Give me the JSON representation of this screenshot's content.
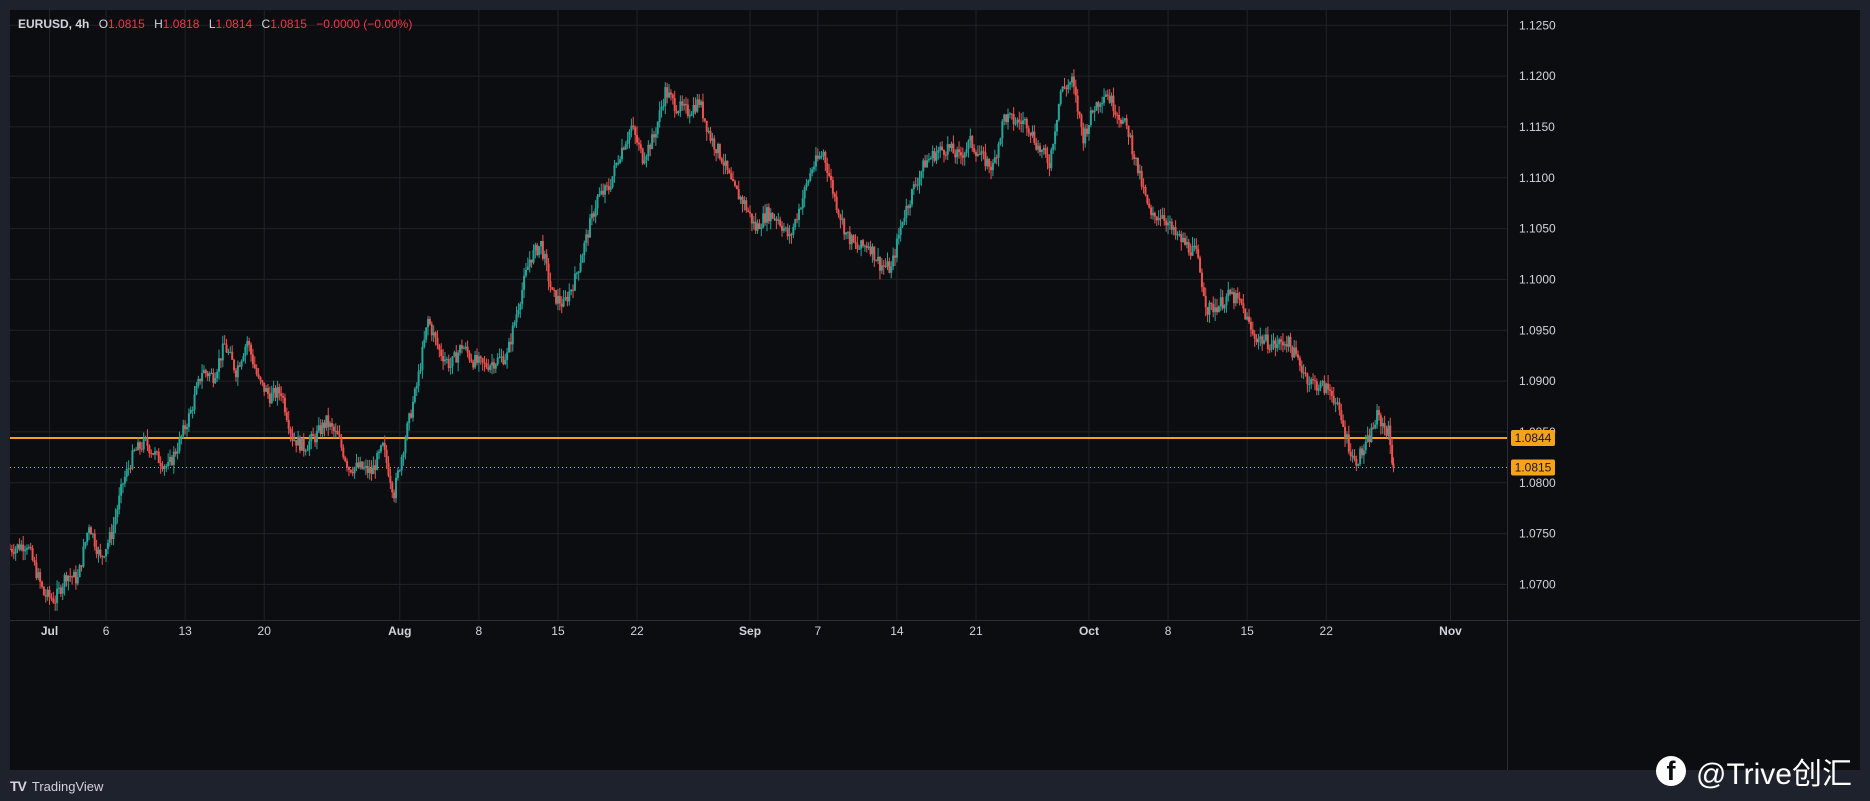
{
  "legend": {
    "symbol": "EURUSD",
    "interval": "4h",
    "o_label": "O",
    "o": "1.0815",
    "h_label": "H",
    "h": "1.0818",
    "l_label": "L",
    "l": "1.0814",
    "c_label": "C",
    "c": "1.0815",
    "change": "−0.0000 (−0.00%)"
  },
  "footer": {
    "brand": "TradingView"
  },
  "watermark": {
    "text": "@Trive创汇",
    "icon": "facebook-icon"
  },
  "colors": {
    "up": "#26a69a",
    "down": "#ef5350",
    "grid": "#1f2227",
    "horizontal_line": "#f7a21b",
    "price_tag": "#f7a21b",
    "background": "#0c0d10"
  },
  "chart_data": {
    "type": "candlestick",
    "symbol": "EURUSD",
    "interval": "4h",
    "ylim": [
      1.0665,
      1.1265
    ],
    "y_ticks": [
      "1.1250",
      "1.1200",
      "1.1150",
      "1.1100",
      "1.1050",
      "1.1000",
      "1.0950",
      "1.0900",
      "1.0850",
      "1.0800",
      "1.0750",
      "1.0700"
    ],
    "x_ticks": [
      {
        "label": "Jul",
        "day": 1,
        "bold": true
      },
      {
        "label": "6",
        "day": 6
      },
      {
        "label": "13",
        "day": 13
      },
      {
        "label": "20",
        "day": 20
      },
      {
        "label": "Aug",
        "day": 32,
        "bold": true
      },
      {
        "label": "8",
        "day": 39
      },
      {
        "label": "15",
        "day": 46
      },
      {
        "label": "22",
        "day": 53
      },
      {
        "label": "Sep",
        "day": 63,
        "bold": true
      },
      {
        "label": "7",
        "day": 69
      },
      {
        "label": "14",
        "day": 76
      },
      {
        "label": "21",
        "day": 83
      },
      {
        "label": "Oct",
        "day": 93,
        "bold": true
      },
      {
        "label": "8",
        "day": 100
      },
      {
        "label": "15",
        "day": 107
      },
      {
        "label": "22",
        "day": 114
      },
      {
        "label": "Nov",
        "day": 125,
        "bold": true
      }
    ],
    "horizontal_line": {
      "price": 1.0844,
      "label": "1.0844"
    },
    "last_price": {
      "price": 1.0815,
      "label": "1.0815"
    },
    "grid": true,
    "path_points": [
      [
        -2.5,
        1.0735
      ],
      [
        -1,
        1.074
      ],
      [
        0.5,
        1.069
      ],
      [
        1.5,
        1.0685
      ],
      [
        2.5,
        1.071
      ],
      [
        3.5,
        1.0705
      ],
      [
        4.5,
        1.076
      ],
      [
        5.5,
        1.0725
      ],
      [
        6.5,
        1.075
      ],
      [
        7.5,
        1.08
      ],
      [
        8.5,
        1.083
      ],
      [
        9.5,
        1.084
      ],
      [
        10.5,
        1.0825
      ],
      [
        11.5,
        1.0815
      ],
      [
        12.5,
        1.084
      ],
      [
        13.5,
        1.087
      ],
      [
        14.5,
        1.091
      ],
      [
        15.5,
        1.0905
      ],
      [
        16.5,
        1.0935
      ],
      [
        17.5,
        1.091
      ],
      [
        18.5,
        1.094
      ],
      [
        19.5,
        1.09
      ],
      [
        20.5,
        1.0885
      ],
      [
        21.5,
        1.089
      ],
      [
        22.5,
        1.0845
      ],
      [
        23.5,
        1.0835
      ],
      [
        24.5,
        1.0845
      ],
      [
        25.5,
        1.086
      ],
      [
        26.5,
        1.0845
      ],
      [
        27.5,
        1.0815
      ],
      [
        28.5,
        1.0815
      ],
      [
        29.5,
        1.081
      ],
      [
        30.5,
        1.0835
      ],
      [
        31.5,
        1.079
      ],
      [
        32.5,
        1.0845
      ],
      [
        33.5,
        1.0895
      ],
      [
        34.5,
        1.096
      ],
      [
        35.5,
        1.093
      ],
      [
        36.5,
        1.0915
      ],
      [
        37.5,
        1.0935
      ],
      [
        38.5,
        1.092
      ],
      [
        39.5,
        1.0915
      ],
      [
        40.5,
        1.092
      ],
      [
        41.5,
        1.0925
      ],
      [
        42.5,
        1.0975
      ],
      [
        43.5,
        1.102
      ],
      [
        44.5,
        1.1035
      ],
      [
        45.5,
        1.0985
      ],
      [
        46.5,
        1.0975
      ],
      [
        47.5,
        1.1
      ],
      [
        48.5,
        1.104
      ],
      [
        49.5,
        1.108
      ],
      [
        50.5,
        1.109
      ],
      [
        51.5,
        1.1125
      ],
      [
        52.5,
        1.115
      ],
      [
        53.5,
        1.112
      ],
      [
        54.5,
        1.114
      ],
      [
        55.5,
        1.1185
      ],
      [
        56.5,
        1.117
      ],
      [
        57.5,
        1.1165
      ],
      [
        58.5,
        1.1175
      ],
      [
        59.5,
        1.114
      ],
      [
        60.5,
        1.112
      ],
      [
        61.5,
        1.109
      ],
      [
        62.5,
        1.1075
      ],
      [
        63.5,
        1.105
      ],
      [
        64.5,
        1.1065
      ],
      [
        65.5,
        1.106
      ],
      [
        66.5,
        1.104
      ],
      [
        67.5,
        1.1075
      ],
      [
        68.5,
        1.111
      ],
      [
        69.5,
        1.1125
      ],
      [
        70.5,
        1.108
      ],
      [
        71.5,
        1.1045
      ],
      [
        72.5,
        1.103
      ],
      [
        73.5,
        1.1035
      ],
      [
        74.5,
        1.1015
      ],
      [
        75.5,
        1.101
      ],
      [
        76.5,
        1.106
      ],
      [
        77.5,
        1.109
      ],
      [
        78.5,
        1.1115
      ],
      [
        79.5,
        1.1125
      ],
      [
        80.5,
        1.113
      ],
      [
        81.5,
        1.112
      ],
      [
        82.5,
        1.1135
      ],
      [
        83.5,
        1.112
      ],
      [
        84.5,
        1.111
      ],
      [
        85.5,
        1.116
      ],
      [
        86.5,
        1.1155
      ],
      [
        87.5,
        1.1155
      ],
      [
        88.5,
        1.113
      ],
      [
        89.5,
        1.1115
      ],
      [
        90.5,
        1.1185
      ],
      [
        91.5,
        1.1195
      ],
      [
        92.5,
        1.114
      ],
      [
        93.5,
        1.117
      ],
      [
        94.5,
        1.1185
      ],
      [
        95.5,
        1.1165
      ],
      [
        96.5,
        1.1145
      ],
      [
        97.5,
        1.11
      ],
      [
        98.5,
        1.106
      ],
      [
        99.5,
        1.1065
      ],
      [
        100.5,
        1.1045
      ],
      [
        101.5,
        1.1035
      ],
      [
        102.5,
        1.1025
      ],
      [
        103.5,
        1.097
      ],
      [
        104.5,
        1.0975
      ],
      [
        105.5,
        1.0985
      ],
      [
        106.5,
        1.0975
      ],
      [
        107.5,
        1.0945
      ],
      [
        108.5,
        1.094
      ],
      [
        109.5,
        1.0935
      ],
      [
        110.5,
        1.094
      ],
      [
        111.5,
        1.092
      ],
      [
        112.5,
        1.09
      ],
      [
        113.5,
        1.0895
      ],
      [
        114.5,
        1.089
      ],
      [
        115.5,
        1.0855
      ],
      [
        116.5,
        1.082
      ],
      [
        117.5,
        1.0835
      ],
      [
        118.5,
        1.0865
      ],
      [
        119.5,
        1.085
      ],
      [
        119.95,
        1.0815
      ]
    ]
  }
}
